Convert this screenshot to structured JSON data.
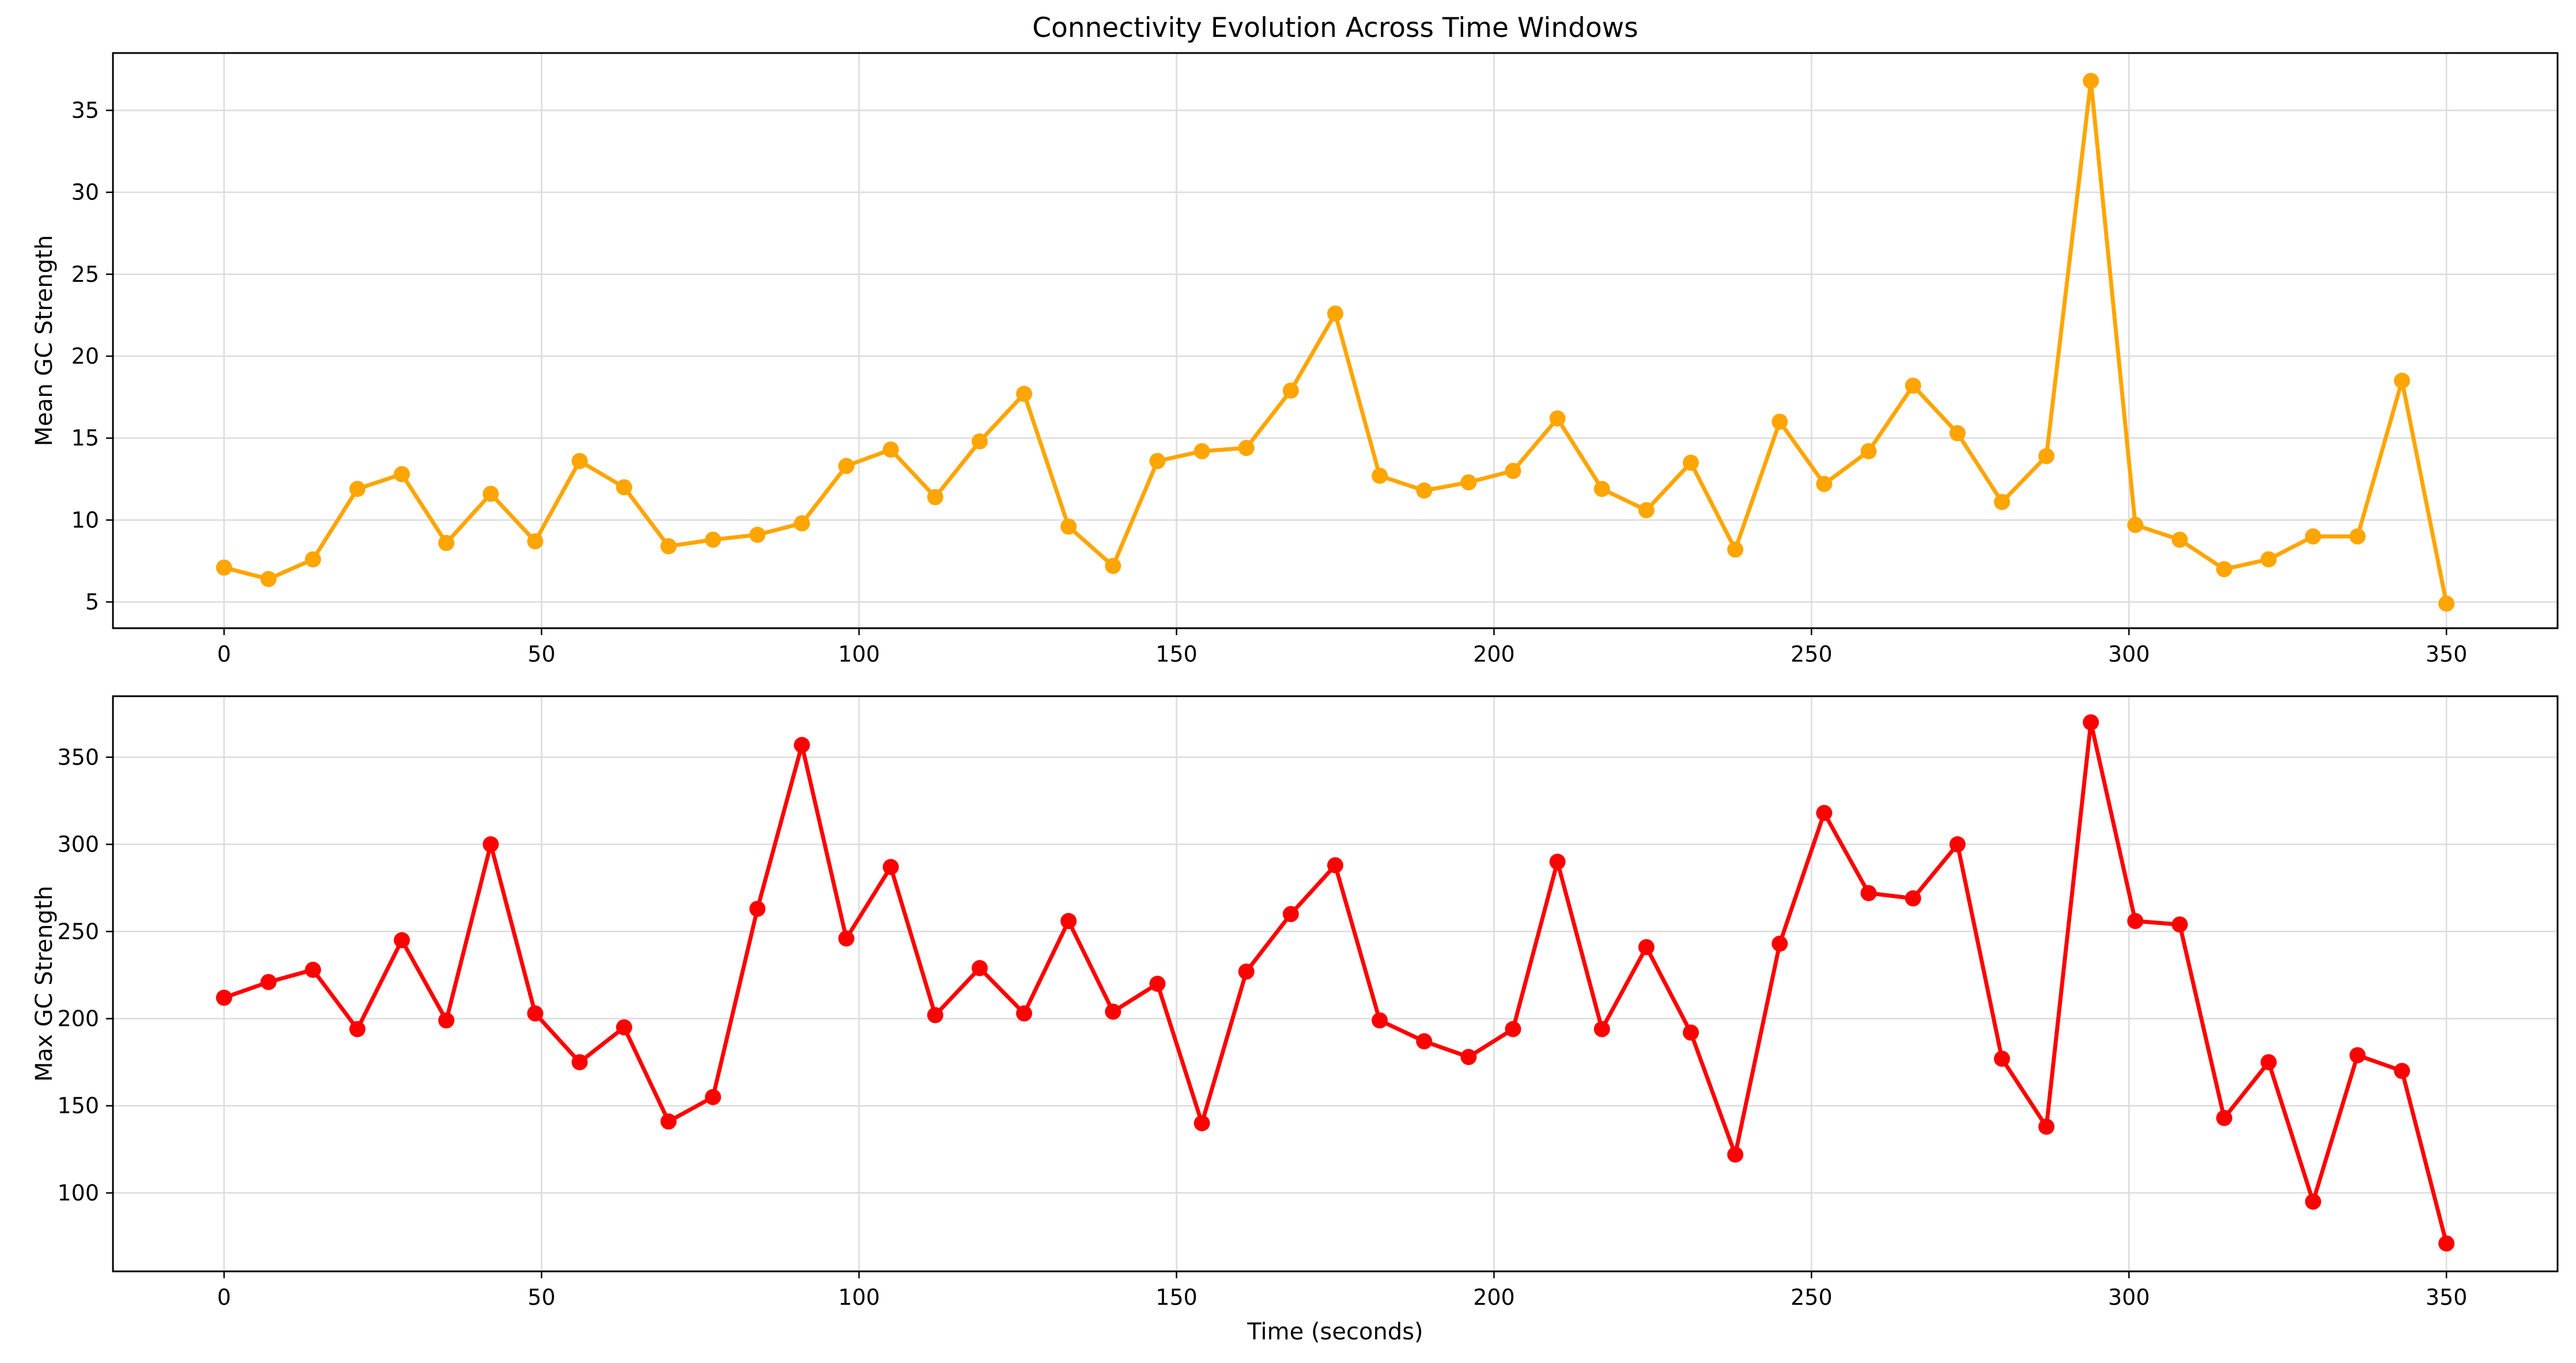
{
  "title": "Connectivity Evolution Across Time Windows",
  "chart_data": [
    {
      "type": "line",
      "title": "Connectivity Evolution Across Time Windows",
      "xlabel": "",
      "ylabel": "Mean GC Strength",
      "xlim": [
        -17.5,
        367.5
      ],
      "ylim": [
        3.4,
        38.5
      ],
      "xticks": [
        0,
        50,
        100,
        150,
        200,
        250,
        300,
        350
      ],
      "yticks": [
        5,
        10,
        15,
        20,
        25,
        30,
        35
      ],
      "grid": true,
      "color": "#FFA500",
      "marker": "circle",
      "x": [
        0,
        7,
        14,
        21,
        28,
        35,
        42,
        49,
        56,
        63,
        70,
        77,
        84,
        91,
        98,
        105,
        112,
        119,
        126,
        133,
        140,
        147,
        154,
        161,
        168,
        175,
        182,
        189,
        196,
        203,
        210,
        217,
        224,
        231,
        238,
        245,
        252,
        259,
        266,
        273,
        280,
        287,
        294,
        301,
        308,
        315,
        322,
        329,
        336,
        343,
        350
      ],
      "values": [
        7.1,
        6.4,
        7.6,
        11.9,
        12.8,
        8.6,
        11.6,
        8.7,
        13.6,
        12.0,
        8.4,
        8.8,
        9.1,
        9.8,
        13.3,
        14.3,
        11.4,
        14.8,
        17.7,
        9.6,
        7.2,
        13.6,
        14.2,
        14.4,
        17.9,
        22.6,
        12.7,
        11.8,
        12.3,
        13.0,
        16.2,
        11.9,
        10.6,
        13.5,
        8.2,
        16.0,
        12.2,
        14.2,
        18.2,
        15.3,
        11.1,
        13.9,
        36.8,
        9.7,
        8.8,
        7.0,
        7.6,
        9.0,
        9.0,
        18.5,
        4.9
      ]
    },
    {
      "type": "line",
      "title": "",
      "xlabel": "Time (seconds)",
      "ylabel": "Max GC Strength",
      "xlim": [
        -17.5,
        367.5
      ],
      "ylim": [
        55,
        385
      ],
      "xticks": [
        0,
        50,
        100,
        150,
        200,
        250,
        300,
        350
      ],
      "yticks": [
        100,
        150,
        200,
        250,
        300,
        350
      ],
      "grid": true,
      "color": "#FF0000",
      "marker": "circle",
      "x": [
        0,
        7,
        14,
        21,
        28,
        35,
        42,
        49,
        56,
        63,
        70,
        77,
        84,
        91,
        98,
        105,
        112,
        119,
        126,
        133,
        140,
        147,
        154,
        161,
        168,
        175,
        182,
        189,
        196,
        203,
        210,
        217,
        224,
        231,
        238,
        245,
        252,
        259,
        266,
        273,
        280,
        287,
        294,
        301,
        308,
        315,
        322,
        329,
        336,
        343,
        350
      ],
      "values": [
        212,
        221,
        228,
        194,
        245,
        199,
        300,
        203,
        175,
        195,
        141,
        155,
        263,
        357,
        246,
        287,
        202,
        229,
        203,
        256,
        204,
        220,
        140,
        227,
        260,
        288,
        199,
        187,
        178,
        194,
        290,
        194,
        241,
        192,
        122,
        243,
        318,
        272,
        269,
        300,
        177,
        138,
        370,
        256,
        254,
        143,
        175,
        95,
        179,
        170,
        71
      ]
    }
  ]
}
